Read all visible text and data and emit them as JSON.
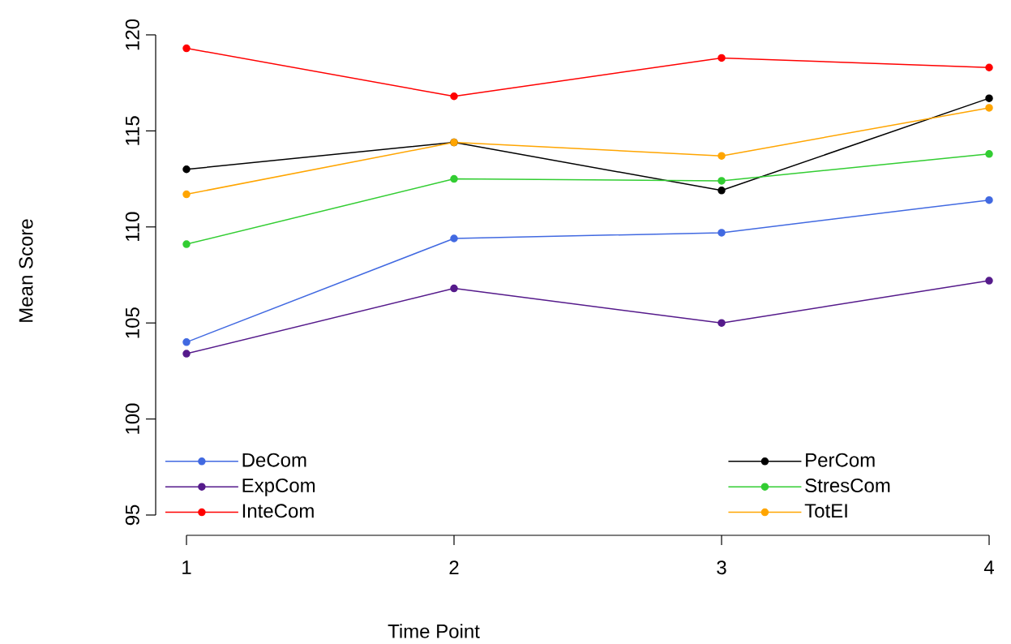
{
  "chart_data": {
    "type": "line",
    "xlabel": "Time Point",
    "ylabel": "Mean Score",
    "x": [
      1,
      2,
      3,
      4
    ],
    "series": [
      {
        "name": "DeCom",
        "color": "#4169e1",
        "values": [
          104.0,
          109.4,
          109.7,
          111.4
        ]
      },
      {
        "name": "ExpCom",
        "color": "#551a8b",
        "values": [
          103.4,
          106.8,
          105.0,
          107.2
        ]
      },
      {
        "name": "InteCom",
        "color": "#ff0000",
        "values": [
          119.3,
          116.8,
          118.8,
          118.3
        ]
      },
      {
        "name": "PerCom",
        "color": "#000000",
        "values": [
          113.0,
          114.4,
          111.9,
          116.7
        ]
      },
      {
        "name": "StresCom",
        "color": "#32cd32",
        "values": [
          109.1,
          112.5,
          112.4,
          113.8
        ]
      },
      {
        "name": "TotEI",
        "color": "#ffa500",
        "values": [
          111.7,
          114.4,
          113.7,
          116.2
        ]
      }
    ],
    "xlim": [
      1,
      4
    ],
    "ylim": [
      95,
      120
    ],
    "xticks": [
      1,
      2,
      3,
      4
    ],
    "yticks": [
      95,
      100,
      105,
      110,
      115,
      120
    ],
    "grid": false,
    "legend": "bottom",
    "marker": "circle",
    "line_style": "solid"
  }
}
